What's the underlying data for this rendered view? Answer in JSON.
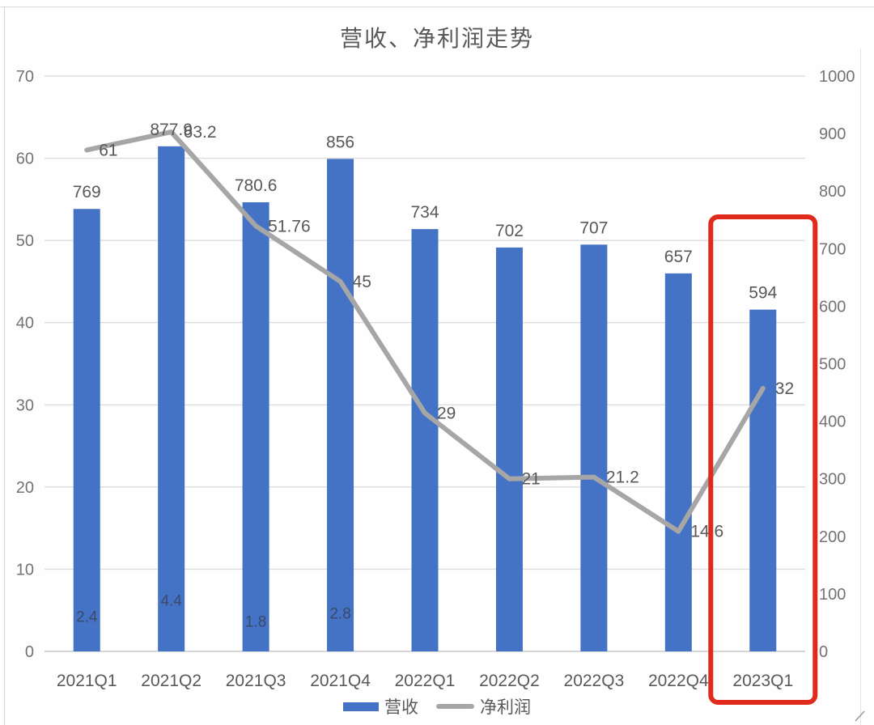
{
  "page": {
    "title": "营收、净利润走势"
  },
  "chart_data": {
    "type": "bar+line",
    "title": "营收、净利润走势",
    "categories": [
      "2021Q1",
      "2021Q2",
      "2021Q3",
      "2021Q4",
      "2022Q1",
      "2022Q2",
      "2022Q3",
      "2022Q4",
      "2023Q1"
    ],
    "series": [
      {
        "name": "营收",
        "type": "bar",
        "axis": "right",
        "color": "#4472C4",
        "values": [
          769,
          877.9,
          780.6,
          856,
          734,
          702,
          707,
          657,
          594
        ]
      },
      {
        "name": "净利润",
        "type": "line",
        "axis": "left",
        "color": "#A6A6A6",
        "values": [
          61,
          63.2,
          51.76,
          45,
          29,
          21,
          21.2,
          14.6,
          32
        ]
      },
      {
        "name": "bar-inner-labels",
        "type": "labels",
        "axis": "left",
        "color": "#3b4a6b",
        "values": [
          2.4,
          4.4,
          1.8,
          2.8,
          null,
          null,
          null,
          null,
          null
        ]
      }
    ],
    "left_axis": {
      "min": 0,
      "max": 70,
      "step": 10,
      "ticks": [
        "0",
        "10",
        "20",
        "30",
        "40",
        "50",
        "60",
        "70"
      ]
    },
    "right_axis": {
      "min": 0,
      "max": 1000,
      "step": 100,
      "ticks": [
        "0",
        "100",
        "200",
        "300",
        "400",
        "500",
        "600",
        "700",
        "800",
        "900",
        "1000"
      ]
    },
    "legend": [
      "营收",
      "净利润"
    ],
    "legend_position": "bottom",
    "grid": true,
    "highlight": {
      "category": "2023Q1",
      "shape": "red-box",
      "color": "#E02B1C"
    }
  },
  "colors": {
    "bar": "#4472C4",
    "line": "#A6A6A6",
    "gridline": "#DCDCDC",
    "axis_baseline": "#C9C9C9",
    "axis_text": "#737373",
    "label_text": "#595959",
    "inner_label_text": "#3b4a6b",
    "highlight_red": "#E02B1C",
    "title_text": "#595959"
  }
}
